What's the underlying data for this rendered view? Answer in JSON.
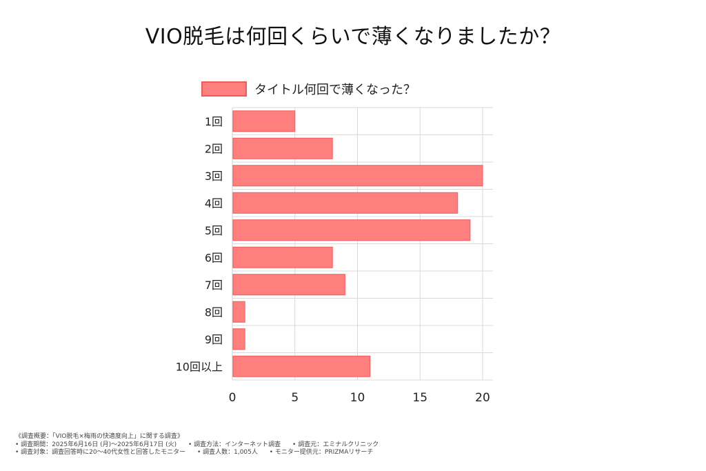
{
  "page": {
    "title": "VIO脱毛は何回くらいで薄くなりましたか？"
  },
  "colors": {
    "bar_fill": "#ff7f7f",
    "bar_stroke": "#f25a5a",
    "grid": "#d9d9d9",
    "axis": "#cccccc"
  },
  "chart_data": {
    "type": "bar",
    "orientation": "horizontal",
    "categories": [
      "1回",
      "2回",
      "3回",
      "4回",
      "5回",
      "6回",
      "7回",
      "8回",
      "9回",
      "10回以上"
    ],
    "series": [
      {
        "name": "タイトル何回で薄くなった？",
        "values": [
          5,
          8,
          20,
          18,
          19,
          8,
          9,
          1,
          1,
          11
        ]
      }
    ],
    "xlim": [
      0,
      20
    ],
    "xticks": [
      "0",
      "5",
      "10",
      "15",
      "20"
    ],
    "grid": true,
    "legend": "top"
  },
  "footer": {
    "line1": "《調査概要：「VIO脱毛×梅雨の快適度向上」に関する調査》",
    "line2_a": "• 調査期間：2025年6月16日 (月)～2025年6月17日 (火)",
    "line2_b": "• 調査方法：インターネット調査",
    "line2_c": "• 調査元：エミナルクリニック",
    "line3_a": "• 調査対象：調査回答時に20～40代女性と回答したモニター",
    "line3_b": "• 調査人数：1,005人",
    "line3_c": "• モニター提供元：PRIZMAリサーチ"
  }
}
